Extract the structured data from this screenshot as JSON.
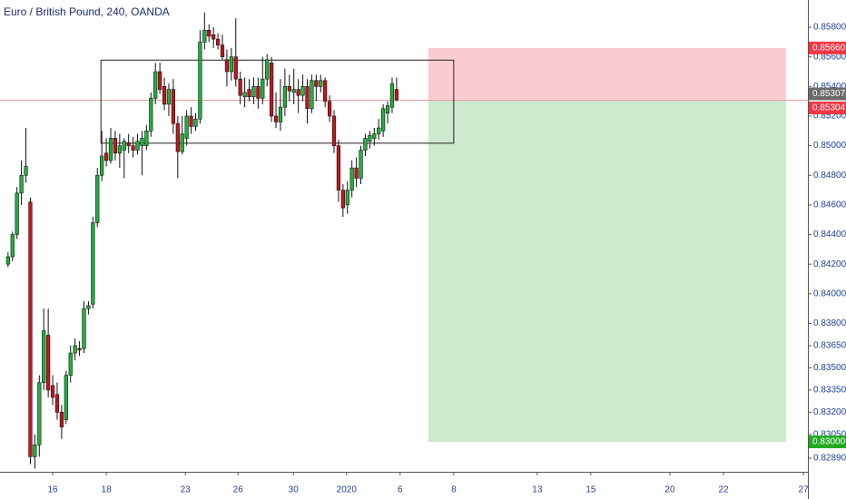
{
  "chart_data": {
    "type": "candlestick",
    "title": "Euro / British Pound, 240, OANDA",
    "x": [
      1,
      2,
      3,
      4,
      5,
      6,
      7,
      8,
      9,
      10,
      11,
      12,
      13,
      14,
      15,
      16,
      17,
      18,
      19,
      20,
      21,
      22,
      23,
      24,
      25,
      26,
      27,
      28,
      29,
      30,
      31,
      32,
      33,
      34,
      35,
      36,
      37,
      38,
      39,
      40,
      41,
      42,
      43,
      44,
      45,
      46,
      47,
      48,
      49,
      50,
      51,
      52,
      53,
      54,
      55,
      56,
      57,
      58,
      59,
      60,
      61,
      62,
      63,
      64,
      65,
      66,
      67,
      68,
      69,
      70,
      71,
      72,
      73,
      74,
      75,
      76,
      77,
      78,
      79,
      80,
      81,
      82,
      83,
      84,
      85,
      86,
      87,
      88
    ],
    "open": [
      0.842,
      0.8425,
      0.844,
      0.8468,
      0.848,
      0.8462,
      0.829,
      0.8298,
      0.834,
      0.8372,
      0.8338,
      0.8332,
      0.832,
      0.8315,
      0.8345,
      0.836,
      0.8363,
      0.8363,
      0.839,
      0.8393,
      0.8448,
      0.848,
      0.8495,
      0.849,
      0.8505,
      0.8495,
      0.8497,
      0.8502,
      0.85,
      0.8497,
      0.85,
      0.85,
      0.851,
      0.8532,
      0.855,
      0.854,
      0.8528,
      0.8538,
      0.8515,
      0.8496,
      0.8505,
      0.852,
      0.8513,
      0.8518,
      0.857,
      0.8578,
      0.8575,
      0.8572,
      0.8568,
      0.8558,
      0.855,
      0.856,
      0.8545,
      0.8533,
      0.8538,
      0.8533,
      0.854,
      0.8532,
      0.8545,
      0.8556,
      0.852,
      0.8516,
      0.8526,
      0.854,
      0.8536,
      0.8538,
      0.8534,
      0.854,
      0.8525,
      0.8544,
      0.854,
      0.8544,
      0.853,
      0.852,
      0.85,
      0.847,
      0.846,
      0.847,
      0.8485,
      0.8478,
      0.8497,
      0.8503,
      0.8505,
      0.8508,
      0.851,
      0.8522,
      0.8526,
      0.8538
    ],
    "high": [
      0.8428,
      0.8442,
      0.8472,
      0.849,
      0.8512,
      0.8465,
      0.8305,
      0.8345,
      0.839,
      0.839,
      0.8345,
      0.834,
      0.8325,
      0.8348,
      0.8365,
      0.837,
      0.8368,
      0.8395,
      0.8395,
      0.8452,
      0.8485,
      0.851,
      0.8505,
      0.8512,
      0.851,
      0.8508,
      0.8505,
      0.8508,
      0.8506,
      0.8508,
      0.851,
      0.8514,
      0.8536,
      0.8556,
      0.8556,
      0.8546,
      0.8542,
      0.8545,
      0.852,
      0.852,
      0.8524,
      0.8526,
      0.8522,
      0.8578,
      0.859,
      0.8582,
      0.858,
      0.8576,
      0.8575,
      0.8565,
      0.8566,
      0.8586,
      0.855,
      0.8546,
      0.8545,
      0.8546,
      0.8546,
      0.856,
      0.8562,
      0.856,
      0.8536,
      0.8545,
      0.8552,
      0.8548,
      0.8552,
      0.8545,
      0.8548,
      0.8545,
      0.8548,
      0.8548,
      0.8548,
      0.8546,
      0.8534,
      0.8524,
      0.8504,
      0.8474,
      0.8476,
      0.849,
      0.8492,
      0.85,
      0.8508,
      0.851,
      0.8512,
      0.8518,
      0.8528,
      0.853,
      0.8546,
      0.8546
    ],
    "low": [
      0.8418,
      0.8422,
      0.8437,
      0.846,
      0.8475,
      0.8285,
      0.8282,
      0.829,
      0.8335,
      0.833,
      0.8325,
      0.8315,
      0.8302,
      0.8312,
      0.834,
      0.8355,
      0.8358,
      0.836,
      0.8386,
      0.839,
      0.8445,
      0.8476,
      0.8486,
      0.8488,
      0.849,
      0.8485,
      0.8478,
      0.8495,
      0.8492,
      0.8494,
      0.848,
      0.8497,
      0.8506,
      0.8528,
      0.8535,
      0.8524,
      0.852,
      0.8508,
      0.8478,
      0.8494,
      0.85,
      0.8508,
      0.851,
      0.8515,
      0.8565,
      0.857,
      0.8566,
      0.8565,
      0.8558,
      0.854,
      0.8544,
      0.854,
      0.8528,
      0.8526,
      0.853,
      0.8528,
      0.8525,
      0.8528,
      0.854,
      0.8516,
      0.8512,
      0.851,
      0.852,
      0.853,
      0.8528,
      0.8522,
      0.853,
      0.8515,
      0.8522,
      0.853,
      0.8536,
      0.8526,
      0.8516,
      0.8495,
      0.8462,
      0.8452,
      0.8454,
      0.8465,
      0.8472,
      0.8474,
      0.8493,
      0.8498,
      0.85,
      0.8504,
      0.8506,
      0.8515,
      0.8522,
      0.853
    ],
    "close": [
      0.8425,
      0.844,
      0.8468,
      0.848,
      0.8486,
      0.829,
      0.8298,
      0.834,
      0.8375,
      0.8335,
      0.833,
      0.832,
      0.831,
      0.8345,
      0.836,
      0.8365,
      0.8362,
      0.839,
      0.8392,
      0.8448,
      0.848,
      0.8493,
      0.849,
      0.8505,
      0.8495,
      0.85,
      0.8503,
      0.85,
      0.8497,
      0.8503,
      0.8505,
      0.851,
      0.8532,
      0.855,
      0.8538,
      0.8528,
      0.8538,
      0.8515,
      0.8496,
      0.8508,
      0.852,
      0.8513,
      0.8518,
      0.857,
      0.8578,
      0.8574,
      0.8572,
      0.8568,
      0.856,
      0.855,
      0.856,
      0.8545,
      0.8534,
      0.8536,
      0.8533,
      0.854,
      0.8532,
      0.8545,
      0.8558,
      0.852,
      0.8516,
      0.8526,
      0.854,
      0.8537,
      0.8538,
      0.8534,
      0.854,
      0.8525,
      0.8544,
      0.854,
      0.8544,
      0.853,
      0.852,
      0.85,
      0.847,
      0.8458,
      0.847,
      0.8485,
      0.8478,
      0.8497,
      0.8505,
      0.8507,
      0.8508,
      0.8512,
      0.8525,
      0.8527,
      0.8542,
      0.8531
    ],
    "up_color": "#1fb33a",
    "down_color": "#c8141c",
    "xlim": [
      -0.8,
      180.1
    ],
    "xticks": [
      {
        "value": 11.0,
        "label": "16"
      },
      {
        "value": 23.0,
        "label": "18"
      },
      {
        "value": 40.7,
        "label": "23"
      },
      {
        "value": 52.5,
        "label": "26"
      },
      {
        "value": 64.9,
        "label": "30"
      },
      {
        "value": 76.8,
        "label": "2020"
      },
      {
        "value": 88.8,
        "label": "6"
      },
      {
        "value": 100.8,
        "label": "8"
      },
      {
        "value": 119.5,
        "label": "13"
      },
      {
        "value": 131.5,
        "label": "15"
      },
      {
        "value": 149.2,
        "label": "20"
      },
      {
        "value": 161.2,
        "label": "22"
      },
      {
        "value": 179.1,
        "label": "27"
      }
    ],
    "ylim": [
      0.82798,
      0.85984
    ],
    "yticks": [
      {
        "value": 0.858,
        "label": "0.85800"
      },
      {
        "value": 0.856,
        "label": "0.85600"
      },
      {
        "value": 0.854,
        "label": "0.85400"
      },
      {
        "value": 0.852,
        "label": "0.85200"
      },
      {
        "value": 0.85,
        "label": "0.85000"
      },
      {
        "value": 0.848,
        "label": "0.84800"
      },
      {
        "value": 0.846,
        "label": "0.84600"
      },
      {
        "value": 0.844,
        "label": "0.84400"
      },
      {
        "value": 0.842,
        "label": "0.84200"
      },
      {
        "value": 0.84,
        "label": "0.84000"
      },
      {
        "value": 0.838,
        "label": "0.83800"
      },
      {
        "value": 0.8365,
        "label": "0.83650"
      },
      {
        "value": 0.835,
        "label": "0.83500"
      },
      {
        "value": 0.8335,
        "label": "0.83350"
      },
      {
        "value": 0.832,
        "label": "0.83200"
      },
      {
        "value": 0.8305,
        "label": "0.83050"
      },
      {
        "value": 0.8289,
        "label": "0.82890"
      }
    ],
    "range_box": {
      "x": [
        21.8,
        100.8
      ],
      "y": [
        0.85017,
        0.85578
      ]
    },
    "position": {
      "x": [
        95.1,
        175.2
      ],
      "entry": 0.85304,
      "stop": 0.8566,
      "target": 0.83
    },
    "current_price": {
      "value": 0.85307,
      "label": "0.85307"
    },
    "price_labels": [
      {
        "value": 0.8566,
        "label": "0.85660",
        "color": "#f23645"
      },
      {
        "value": 0.85307,
        "label": "0.85307",
        "color": "#6b6b6b"
      },
      {
        "value": 0.85304,
        "label": "0.85304",
        "color": "#f23645"
      },
      {
        "value": 0.83,
        "label": "0.83000",
        "color": "#22ab22"
      }
    ]
  }
}
